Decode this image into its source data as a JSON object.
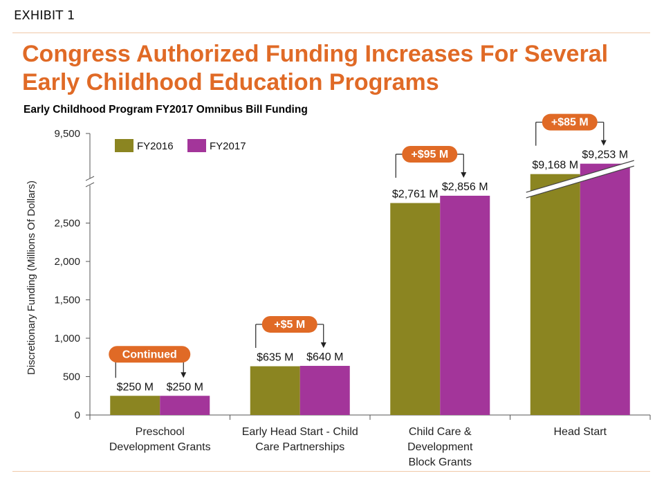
{
  "header": {
    "exhibit": "EXHIBIT 1",
    "title": "Congress Authorized Funding Increases For Several Early Childhood Education Programs",
    "subtitle": "Early Childhood Program FY2017 Omnibus Bill Funding"
  },
  "colors": {
    "accent": "#e06a26",
    "fy2016": "#8b8521",
    "fy2017": "#a3359a",
    "pill": "#e06a26",
    "axis": "#555555"
  },
  "chart_data": {
    "type": "bar",
    "title": "Early Childhood Program FY2017 Omnibus Bill Funding",
    "ylabel": "Discretionary Funding (Millions Of Dollars)",
    "xlabel": "",
    "y_ticks": [
      0,
      500,
      1000,
      1500,
      2000,
      2500,
      9500
    ],
    "y_tick_labels": [
      "0",
      "500",
      "1,000",
      "1,500",
      "2,000",
      "2,500",
      "9,500"
    ],
    "axis_break": true,
    "legend_position": "top-left",
    "categories": [
      "Preschool Development Grants",
      "Early Head Start - Child Care Partnerships",
      "Child Care & Development Block Grants",
      "Head Start"
    ],
    "category_lines": [
      [
        "Preschool",
        "Development Grants"
      ],
      [
        "Early Head Start - Child",
        "Care Partnerships"
      ],
      [
        "Child Care &",
        "Development",
        "Block Grants"
      ],
      [
        "Head Start"
      ]
    ],
    "series": [
      {
        "name": "FY2016",
        "values": [
          250,
          635,
          2761,
          9168
        ],
        "labels": [
          "$250 M",
          "$635 M",
          "$2,761 M",
          "$9,168 M"
        ]
      },
      {
        "name": "FY2017",
        "values": [
          250,
          640,
          2856,
          9253
        ],
        "labels": [
          "$250 M",
          "$640 M",
          "$2,856 M",
          "$9,253 M"
        ]
      }
    ],
    "changes": [
      "Continued",
      "+$5 M",
      "+$95 M",
      "+$85 M"
    ]
  }
}
